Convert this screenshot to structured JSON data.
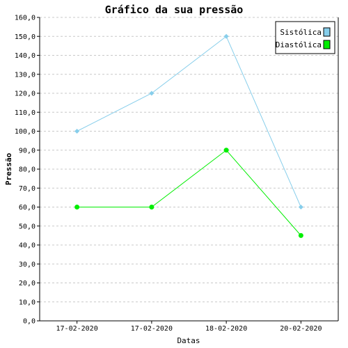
{
  "chart_data": {
    "type": "line",
    "title": "Gráfico da sua pressão",
    "xlabel": "Datas",
    "ylabel": "Pressão",
    "categories": [
      "17-02-2020",
      "17-02-2020",
      "18-02-2020",
      "20-02-2020"
    ],
    "ylim": [
      0,
      160
    ],
    "yticks": [
      "0,0",
      "10,0",
      "20,0",
      "30,0",
      "40,0",
      "50,0",
      "60,0",
      "70,0",
      "80,0",
      "90,0",
      "100,0",
      "110,0",
      "120,0",
      "130,0",
      "140,0",
      "150,0",
      "160,0"
    ],
    "grid": true,
    "legend_position": "top-right",
    "series": [
      {
        "name": "Sistólica",
        "values": [
          100,
          120,
          150,
          60
        ],
        "color": "#87ceeb",
        "marker": "diamond"
      },
      {
        "name": "Diastólica",
        "values": [
          60,
          60,
          90,
          45
        ],
        "color": "#00ee00",
        "marker": "circle"
      }
    ]
  }
}
